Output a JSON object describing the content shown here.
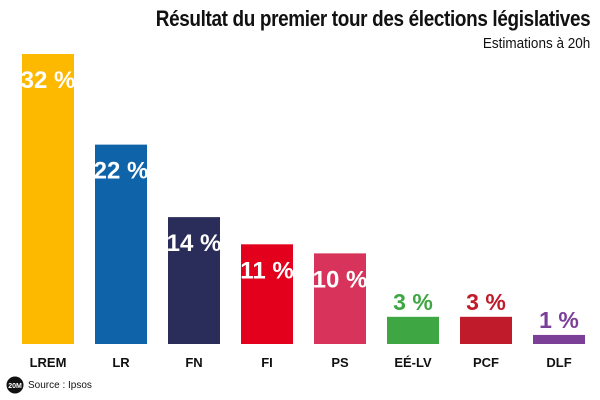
{
  "header": {
    "title": "Résultat du premier tour des élections législatives",
    "subtitle": "Estimations à 20h"
  },
  "footer": {
    "source": "Source : Ipsos",
    "logo_text": "20M"
  },
  "colors": {
    "LREM": "#fdb800",
    "LR": "#0f63a9",
    "FN": "#2a2c5a",
    "FI": "#e2001d",
    "PS": "#d7335b",
    "EE-LV": "#3ea642",
    "PCF": "#c01b2a",
    "DLF": "#7b3f98"
  },
  "chart_data": {
    "type": "bar",
    "title": "Résultat du premier tour des élections législatives",
    "subtitle": "Estimations à 20h",
    "xlabel": "",
    "ylabel": "",
    "ylim": [
      0,
      32
    ],
    "grid": false,
    "legend": "none",
    "categories": [
      "LREM",
      "LR",
      "FN",
      "FI",
      "PS",
      "EÉ-LV",
      "PCF",
      "DLF"
    ],
    "values": [
      32,
      22,
      14,
      11,
      10,
      3,
      3,
      1
    ],
    "value_labels": [
      "32 %",
      "22 %",
      "14 %",
      "11 %",
      "10 %",
      "3 %",
      "3 %",
      "1 %"
    ],
    "colors": [
      "#fdb800",
      "#0f63a9",
      "#2a2c5a",
      "#e2001d",
      "#d7335b",
      "#3ea642",
      "#c01b2a",
      "#7b3f98"
    ]
  }
}
